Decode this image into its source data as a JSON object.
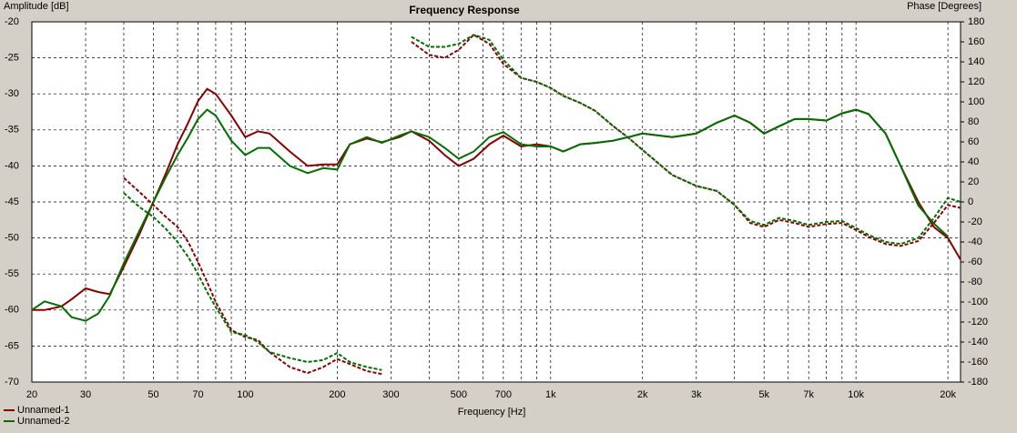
{
  "chart_data": {
    "type": "line",
    "title": "Frequency Response",
    "x_label": "Frequency [Hz]",
    "y_label": "Amplitude [dB]",
    "y2_label": "Phase [Degrees]",
    "xscale": "log",
    "grid": true,
    "legend": "bottom-left",
    "xlim": [
      20,
      22000
    ],
    "ylim": [
      -70,
      -20
    ],
    "y2lim": [
      -180,
      180
    ],
    "xticks": [
      20,
      30,
      50,
      70,
      100,
      200,
      300,
      500,
      700,
      {
        "value": 1000,
        "label": "1k"
      },
      {
        "value": 2000,
        "label": "2k"
      },
      {
        "value": 3000,
        "label": "3k"
      },
      {
        "value": 5000,
        "label": "5k"
      },
      {
        "value": 7000,
        "label": "7k"
      },
      {
        "value": 10000,
        "label": "10k"
      },
      {
        "value": 20000,
        "label": "20k"
      }
    ],
    "x_minor_ticks": [
      40,
      60,
      80,
      90,
      400,
      600,
      800,
      900,
      4000,
      6000,
      8000,
      9000
    ],
    "yticks": [
      -20,
      -25,
      -30,
      -35,
      -40,
      -45,
      -50,
      -55,
      -60,
      -65,
      -70
    ],
    "y2ticks": [
      180,
      160,
      140,
      120,
      100,
      80,
      60,
      40,
      20,
      0,
      -20,
      -40,
      -60,
      -80,
      -100,
      -120,
      -140,
      -160,
      -180
    ],
    "x": [
      20,
      22,
      25,
      27,
      30,
      33,
      36,
      40,
      45,
      50,
      55,
      60,
      65,
      70,
      75,
      80,
      90,
      100,
      110,
      120,
      140,
      160,
      180,
      200,
      220,
      250,
      280,
      320,
      350,
      400,
      450,
      500,
      560,
      630,
      700,
      800,
      900,
      1000,
      1100,
      1250,
      1400,
      1600,
      1800,
      2000,
      2500,
      3000,
      3500,
      4000,
      4500,
      5000,
      5600,
      6300,
      7000,
      8000,
      9000,
      10000,
      11000,
      12500,
      14000,
      16000,
      18000,
      20000,
      22000
    ],
    "series": [
      {
        "name": "Unnamed-1",
        "color": "#8b0000",
        "style": "solid",
        "values": [
          -60,
          -60,
          -59.5,
          -58.5,
          -57,
          -57.5,
          -57.8,
          -54,
          -49.5,
          -45,
          -41,
          -37,
          -34,
          -31,
          -29.3,
          -30,
          -33,
          -36,
          -35.2,
          -35.5,
          -38,
          -40,
          -39.8,
          -39.8,
          -37,
          -36.2,
          -36.7,
          -36,
          -35.2,
          -36.5,
          -38.5,
          -40,
          -39,
          -37,
          -35.8,
          -37.3,
          -37,
          -37.3,
          -38,
          -37,
          -36.8,
          -36.5,
          -36,
          -35.5,
          -36,
          -35.5,
          -34,
          -33,
          -34,
          -35.5,
          -34.5,
          -33.5,
          -33.5,
          -33.7,
          -32.7,
          -32.2,
          -32.8,
          -35.5,
          -40,
          -45,
          -48.5,
          -50,
          -53
        ]
      },
      {
        "name": "Unnamed-2",
        "color": "#007000",
        "style": "solid",
        "values": [
          -60,
          -58.8,
          -59.5,
          -61,
          -61.5,
          -60.5,
          -58,
          -53.5,
          -49,
          -45,
          -41.5,
          -38.5,
          -36,
          -33.5,
          -32.2,
          -33,
          -36.5,
          -38.5,
          -37.5,
          -37.5,
          -40,
          -41,
          -40.3,
          -40.5,
          -37,
          -36,
          -36.8,
          -35.8,
          -35.2,
          -36,
          -37.5,
          -39,
          -38,
          -36,
          -35.3,
          -37,
          -37.3,
          -37.3,
          -38,
          -37,
          -36.8,
          -36.5,
          -36,
          -35.5,
          -36,
          -35.5,
          -34,
          -33,
          -34,
          -35.5,
          -34.5,
          -33.5,
          -33.5,
          -33.7,
          -32.7,
          -32.2,
          -32.8,
          -35.5,
          -40,
          -45.5,
          -48,
          -49.8,
          null
        ]
      },
      {
        "color": "#8b0000",
        "style": "dashed",
        "axis": "y2",
        "values": [
          null,
          null,
          null,
          null,
          null,
          null,
          null,
          24,
          10,
          -3,
          -15,
          -25,
          -40,
          -60,
          -80,
          -100,
          -128,
          -135,
          -138,
          -150,
          -165,
          -171,
          -165,
          -157,
          -162,
          -169,
          -172,
          null,
          160,
          147,
          144,
          152,
          167,
          158,
          138,
          124,
          120,
          114,
          106,
          99,
          91,
          76,
          64,
          52,
          27,
          16,
          11,
          -3,
          -21,
          -25,
          -18,
          -21,
          -25,
          -22,
          -21,
          -28,
          -35,
          -42,
          -44,
          -39,
          -21,
          -3,
          -6
        ]
      },
      {
        "color": "#007000",
        "style": "dashed",
        "axis": "y2",
        "values": [
          null,
          null,
          null,
          null,
          null,
          null,
          null,
          9,
          -5,
          -15,
          -27,
          -40,
          -55,
          -72,
          -90,
          -105,
          -130,
          -133,
          -140,
          -150,
          -156,
          -160,
          -158,
          -151,
          -160,
          -165,
          -168,
          null,
          165,
          155,
          155,
          158,
          167,
          162,
          142,
          124,
          120,
          114,
          106,
          99,
          91,
          76,
          64,
          52,
          27,
          16,
          11,
          -3,
          -19,
          -23,
          -16,
          -19,
          -23,
          -20,
          -19,
          -26,
          -33,
          -40,
          -42,
          -36,
          -16,
          4,
          0
        ]
      }
    ]
  }
}
